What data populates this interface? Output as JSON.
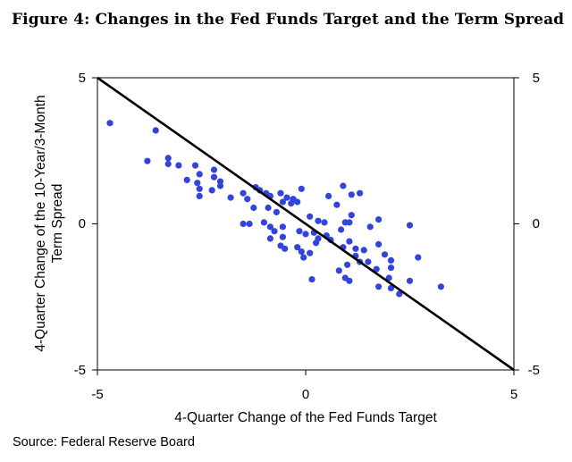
{
  "title": "Figure 4: Changes in the Fed Funds Target and the Term Spread",
  "source": "Source: Federal Reserve Board",
  "colors": {
    "points": "#3344dd",
    "line": "#000000",
    "frame": "#000000"
  },
  "chart_data": {
    "type": "scatter",
    "xlabel": "4-Quarter Change of the Fed Funds Target",
    "ylabel_lines": [
      "4-Quarter Change of the 10-Year/3-Month",
      "Term Spread"
    ],
    "xlim": [
      -5,
      5
    ],
    "ylim": [
      -5,
      5
    ],
    "x_ticks": [
      "-5",
      "0",
      "5"
    ],
    "y_ticks": [
      "5",
      "0",
      "-5"
    ],
    "y2_ticks": [
      "5",
      "0",
      "-5"
    ],
    "grid": false,
    "reference_line": {
      "from": [
        -5,
        5
      ],
      "to": [
        5,
        -5
      ]
    },
    "series": [
      {
        "points": [
          [
            -4.7,
            3.45
          ],
          [
            -3.6,
            3.2
          ],
          [
            -3.8,
            2.15
          ],
          [
            -3.3,
            2.25
          ],
          [
            -3.3,
            2.05
          ],
          [
            -3.05,
            2.0
          ],
          [
            -2.65,
            2.0
          ],
          [
            -2.2,
            1.85
          ],
          [
            -2.55,
            1.7
          ],
          [
            -2.2,
            1.6
          ],
          [
            -2.05,
            1.45
          ],
          [
            -2.85,
            1.5
          ],
          [
            -2.6,
            1.4
          ],
          [
            -2.05,
            1.3
          ],
          [
            -2.25,
            1.15
          ],
          [
            -2.55,
            1.2
          ],
          [
            -2.55,
            0.95
          ],
          [
            -1.8,
            0.9
          ],
          [
            -1.5,
            1.05
          ],
          [
            -1.4,
            0.85
          ],
          [
            -1.2,
            1.25
          ],
          [
            -1.1,
            1.15
          ],
          [
            -0.95,
            1.05
          ],
          [
            -0.85,
            0.95
          ],
          [
            -0.6,
            1.05
          ],
          [
            -0.45,
            0.9
          ],
          [
            -0.3,
            0.85
          ],
          [
            -0.1,
            1.2
          ],
          [
            -0.2,
            0.75
          ],
          [
            -0.35,
            0.7
          ],
          [
            -0.55,
            0.75
          ],
          [
            -0.9,
            0.55
          ],
          [
            -1.25,
            0.55
          ],
          [
            -0.7,
            0.4
          ],
          [
            -1.5,
            0.0
          ],
          [
            -1.35,
            0.0
          ],
          [
            -1.0,
            0.05
          ],
          [
            -0.85,
            -0.1
          ],
          [
            -0.55,
            -0.1
          ],
          [
            -0.75,
            -0.25
          ],
          [
            -0.85,
            -0.5
          ],
          [
            -0.55,
            -0.45
          ],
          [
            -0.6,
            -0.75
          ],
          [
            -0.5,
            -0.85
          ],
          [
            -0.15,
            -0.25
          ],
          [
            0.0,
            -0.35
          ],
          [
            0.2,
            -0.3
          ],
          [
            0.3,
            0.1
          ],
          [
            0.1,
            0.25
          ],
          [
            0.3,
            -0.5
          ],
          [
            0.25,
            -0.65
          ],
          [
            0.5,
            -0.4
          ],
          [
            0.6,
            -0.55
          ],
          [
            -0.2,
            -0.8
          ],
          [
            -0.1,
            -0.95
          ],
          [
            0.1,
            -1.0
          ],
          [
            -0.05,
            -1.15
          ],
          [
            0.15,
            -1.9
          ],
          [
            0.45,
            0.05
          ],
          [
            0.55,
            0.95
          ],
          [
            0.75,
            0.65
          ],
          [
            0.9,
            1.3
          ],
          [
            1.1,
            1.0
          ],
          [
            1.3,
            1.05
          ],
          [
            1.1,
            0.3
          ],
          [
            1.05,
            0.05
          ],
          [
            0.85,
            -0.2
          ],
          [
            1.05,
            -0.6
          ],
          [
            0.9,
            -0.8
          ],
          [
            1.2,
            -0.85
          ],
          [
            1.4,
            -0.9
          ],
          [
            1.2,
            -1.1
          ],
          [
            1.3,
            -1.3
          ],
          [
            1.5,
            -1.3
          ],
          [
            1.0,
            -1.4
          ],
          [
            0.8,
            -1.6
          ],
          [
            0.95,
            -1.85
          ],
          [
            1.05,
            -1.95
          ],
          [
            1.75,
            -0.7
          ],
          [
            1.9,
            -1.05
          ],
          [
            2.05,
            -1.25
          ],
          [
            2.05,
            -1.5
          ],
          [
            1.7,
            -1.55
          ],
          [
            2.0,
            -1.85
          ],
          [
            1.75,
            -2.15
          ],
          [
            2.05,
            -2.2
          ],
          [
            2.25,
            -2.4
          ],
          [
            2.5,
            -1.95
          ],
          [
            2.7,
            -1.15
          ],
          [
            3.25,
            -2.15
          ],
          [
            2.5,
            -0.05
          ],
          [
            1.75,
            0.15
          ],
          [
            1.55,
            -0.1
          ],
          [
            0.95,
            0.05
          ]
        ]
      }
    ]
  }
}
